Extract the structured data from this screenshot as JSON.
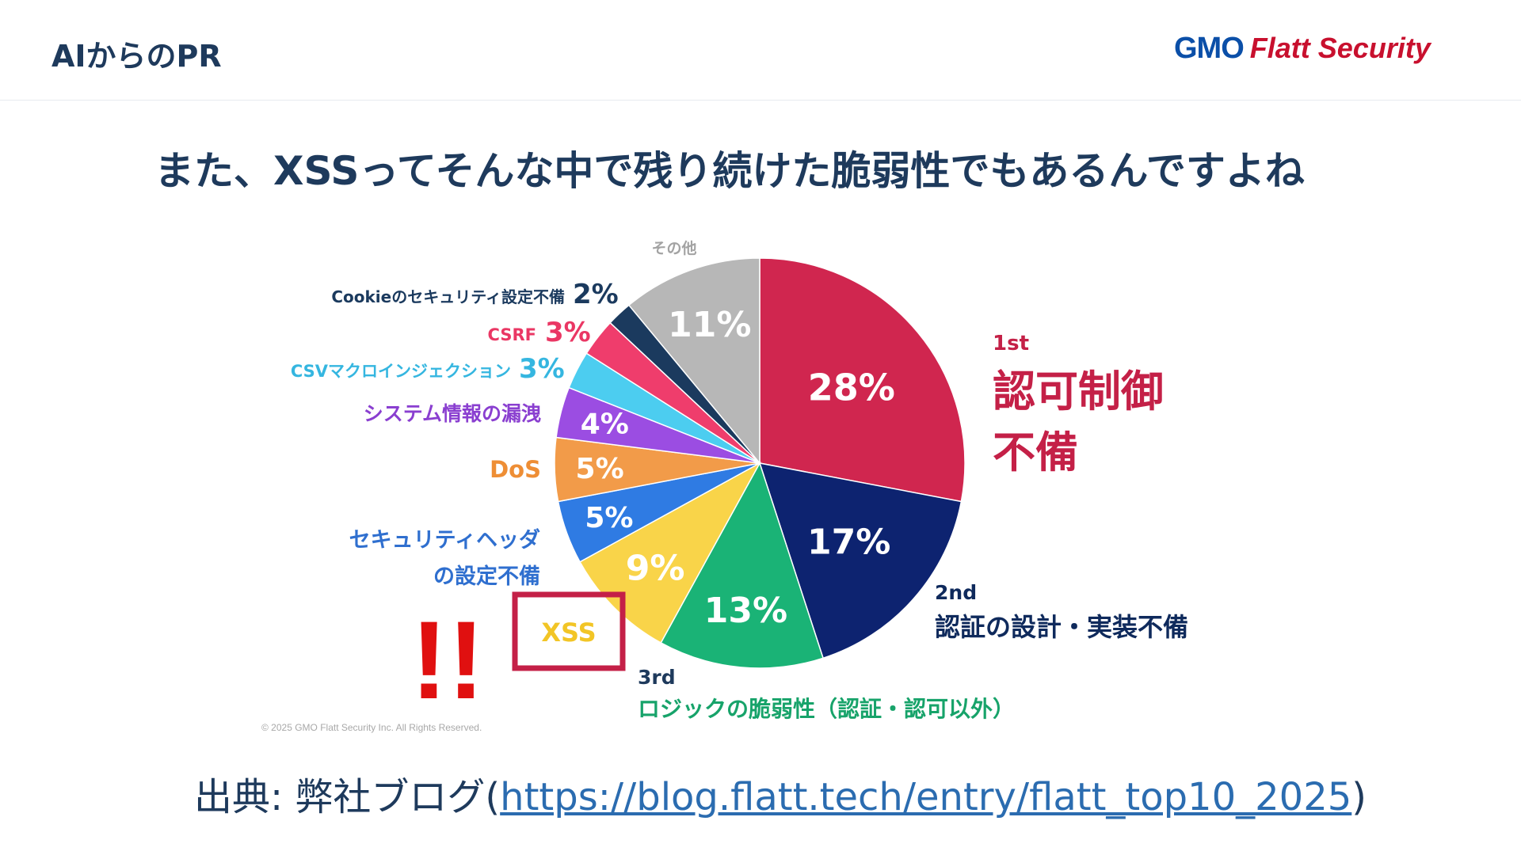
{
  "header": {
    "title": "AIからのPR"
  },
  "logo": {
    "gmo": "GMO",
    "flatt": "Flatt Security"
  },
  "headline": "また、XSSってそんな中で残り続けた脆弱性でもあるんですよね",
  "source": {
    "prefix": "出典: 弊社ブログ(",
    "link": "https://blog.flatt.tech/entry/flatt_top10_2025",
    "suffix": ")"
  },
  "chart_data": {
    "type": "pie",
    "title": "",
    "start": "12 o'clock, clockwise",
    "slices": [
      {
        "label": "認可制御不備",
        "rank": "1st",
        "value": 28,
        "color": "#d0264f",
        "label_color": "#c42047"
      },
      {
        "label": "認証の設計・実装不備",
        "rank": "2nd",
        "value": 17,
        "color": "#0d2370",
        "label_color": "#0f2a5c"
      },
      {
        "label": "ロジックの脆弱性（認証・認可以外）",
        "rank": "3rd",
        "value": 13,
        "color": "#1ab376",
        "label_color": "#17a36a"
      },
      {
        "label": "XSS",
        "value": 9,
        "color": "#f9d449",
        "label_color": "#f2c526"
      },
      {
        "label": "セキュリティヘッダの設定不備",
        "value": 5,
        "color": "#2f7be3",
        "label_color": "#2f6fcf"
      },
      {
        "label": "DoS",
        "value": 5,
        "color": "#f29b49",
        "label_color": "#ee8e35"
      },
      {
        "label": "システム情報の漏洩",
        "value": 4,
        "color": "#9b4de2",
        "label_color": "#8a3fd0"
      },
      {
        "label": "CSVマクロインジェクション",
        "value": 3,
        "color": "#4ccdf0",
        "label_color": "#35b6e0"
      },
      {
        "label": "CSRF",
        "value": 3,
        "color": "#ef3d6c",
        "label_color": "#ea3764"
      },
      {
        "label": "Cookieのセキュリティ設定不備",
        "value": 2,
        "color": "#1b3a5e",
        "label_color": "#1b3a5e"
      },
      {
        "label": "その他",
        "value": 11,
        "color": "#b7b7b7",
        "label_color": "#a3a3a3"
      }
    ],
    "value_suffix": "%",
    "highlight": {
      "label": "XSS",
      "color": "#c42047",
      "marks": "!!",
      "marks_color": "#e01010"
    },
    "copyright": "© 2025 GMO Flatt Security Inc. All Rights Reserved."
  }
}
